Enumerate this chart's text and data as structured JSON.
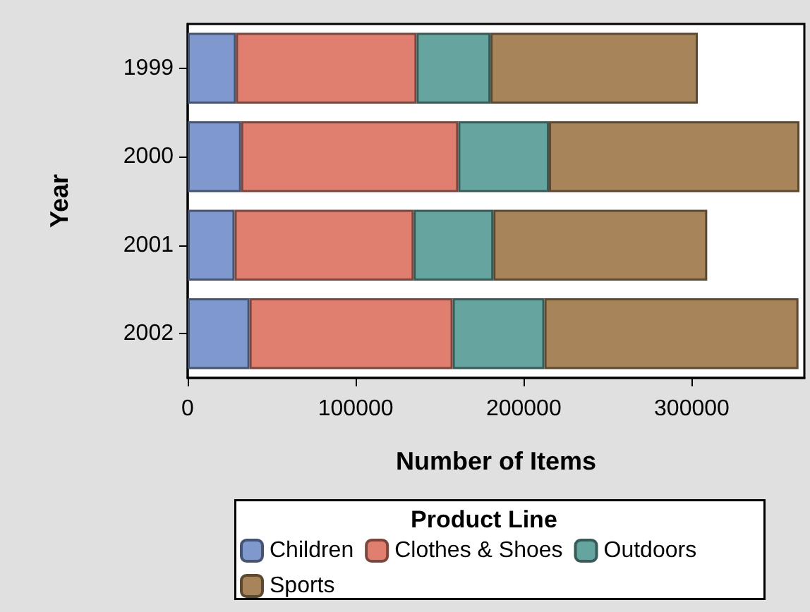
{
  "chart_data": {
    "type": "bar",
    "orientation": "horizontal",
    "stacked": true,
    "xlabel": "Number of Items",
    "ylabel": "Year",
    "legend_title": "Product Line",
    "legend": "bottom",
    "grid": false,
    "categories": [
      "1999",
      "2000",
      "2001",
      "2002"
    ],
    "xlim": [
      0,
      367000
    ],
    "xticks": [
      0,
      100000,
      200000,
      300000
    ],
    "series": [
      {
        "name": "Children",
        "color": "#7f99cf",
        "values": [
          28700,
          31800,
          27900,
          36800
        ]
      },
      {
        "name": "Clothes & Shoes",
        "color": "#e07f70",
        "values": [
          107500,
          129200,
          106600,
          120900
        ]
      },
      {
        "name": "Outdoors",
        "color": "#66a59f",
        "values": [
          44000,
          54000,
          47400,
          54600
        ]
      },
      {
        "name": "Sports",
        "color": "#a8845a",
        "values": [
          123400,
          149100,
          127300,
          151200
        ]
      }
    ]
  }
}
